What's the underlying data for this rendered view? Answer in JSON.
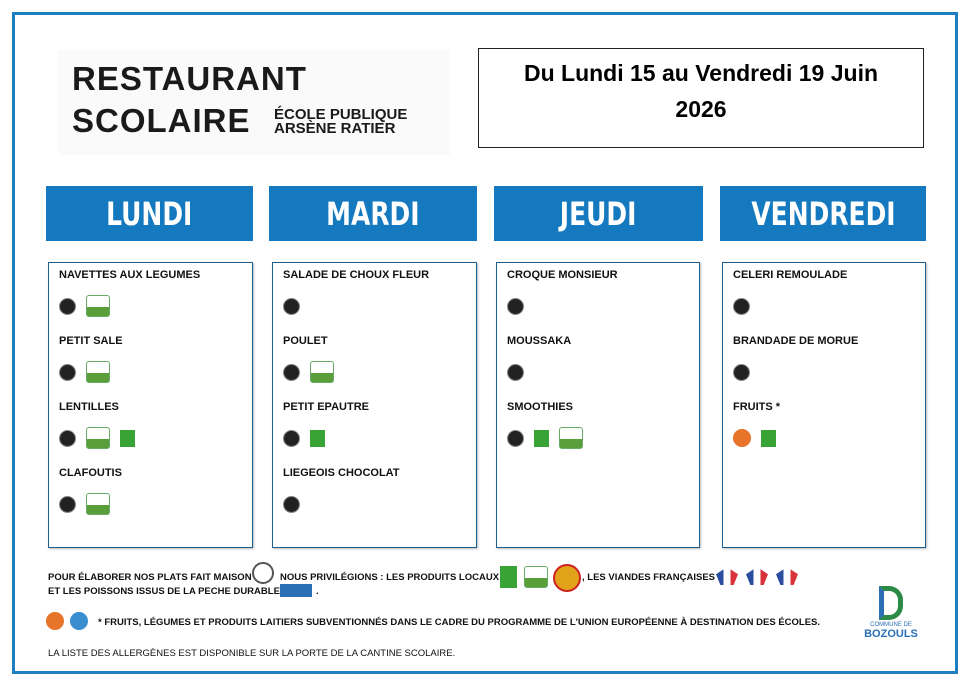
{
  "header": {
    "title_line1": "RESTAURANT",
    "title_line2": "SCOLAIRE",
    "school_line1": "ÉCOLE PUBLIQUE",
    "school_line2": "ARSÈNE RATIER"
  },
  "week": {
    "line1": "Du Lundi 15 au Vendredi 19 Juin",
    "line2": "2026"
  },
  "days": [
    {
      "name": "LUNDI",
      "dishes": [
        "NAVETTES AUX LEGUMES",
        "PETIT SALE",
        "LENTILLES",
        "CLAFOUTIS"
      ]
    },
    {
      "name": "MARDI",
      "dishes": [
        "SALADE DE CHOUX FLEUR",
        "POULET",
        "PETIT EPAUTRE",
        "LIEGEOIS CHOCOLAT"
      ]
    },
    {
      "name": "JEUDI",
      "dishes": [
        "CROQUE MONSIEUR",
        "MOUSSAKA",
        "SMOOTHIES"
      ]
    },
    {
      "name": "VENDREDI",
      "dishes": [
        "CELERI REMOULADE",
        "BRANDADE DE MORUE",
        "FRUITS *"
      ]
    }
  ],
  "footer": {
    "line1": "POUR ÉLABORER NOS PLATS FAIT MAISON",
    "line2": "ET LES POISSONS ISSUS DE LA PECHE DURABLE",
    "line2_end": ".",
    "local": "NOUS PRIVILÉGIONS : LES PRODUITS LOCAUX",
    "meat": ", LES VIANDES FRANÇAISES",
    "eu_note": "* FRUITS, LÉGUMES ET PRODUITS LAITIERS SUBVENTIONNÉS DANS LE CADRE DU PROGRAMME DE L'UNION EUROPÉENNE À DESTINATION DES ÉCOLES.",
    "allergens": "LA LISTE DES ALLERGÈNES EST DISPONIBLE SUR LA PORTE DE LA CANTINE SCOLAIRE."
  },
  "logo": {
    "line1": "COMMUNE DE",
    "line2": "BOZOULS"
  }
}
